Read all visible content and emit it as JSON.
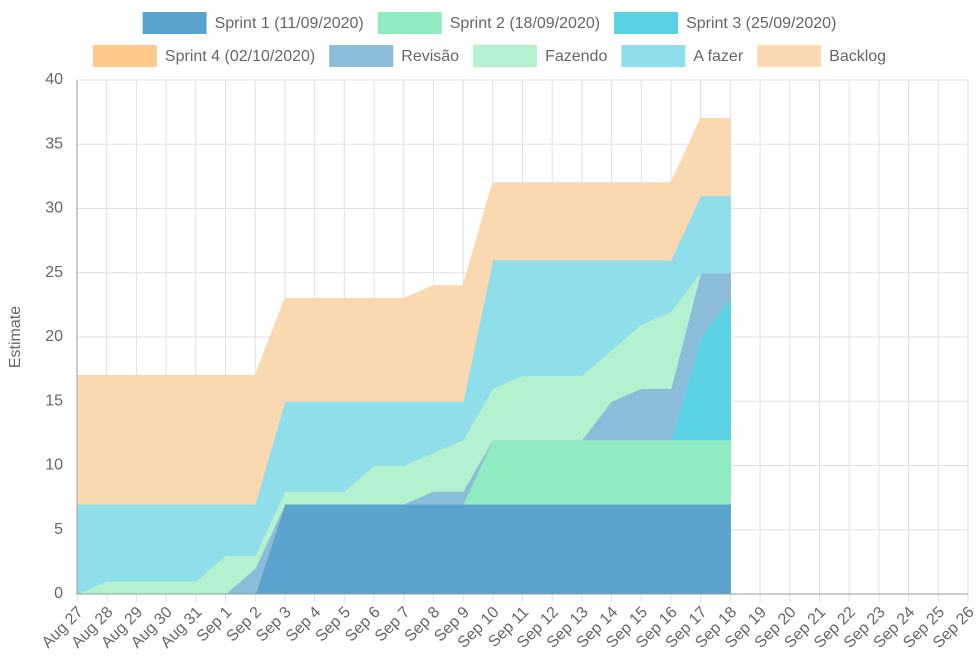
{
  "chart_data": {
    "type": "stacked_area",
    "categories": [
      "Aug 27",
      "Aug 28",
      "Aug 29",
      "Aug 30",
      "Aug 31",
      "Sep 1",
      "Sep 2",
      "Sep 3",
      "Sep 4",
      "Sep 5",
      "Sep 6",
      "Sep 7",
      "Sep 8",
      "Sep 9",
      "Sep 10",
      "Sep 11",
      "Sep 12",
      "Sep 13",
      "Sep 14",
      "Sep 15",
      "Sep 16",
      "Sep 17",
      "Sep 18",
      "Sep 19",
      "Sep 20",
      "Sep 21",
      "Sep 22",
      "Sep 23",
      "Sep 24",
      "Sep 25",
      "Sep 26"
    ],
    "y_label": "Estimate",
    "ylim": [
      0,
      40
    ],
    "yticks": [
      0,
      5,
      10,
      15,
      20,
      25,
      30,
      35,
      40
    ],
    "grid": true,
    "legend": "top",
    "series": [
      {
        "name": "Sprint 1 (11/09/2020)",
        "color": "#5ba3cf",
        "values": [
          0,
          0,
          0,
          0,
          0,
          0,
          0,
          7,
          7,
          7,
          7,
          7,
          7,
          7,
          7,
          7,
          7,
          7,
          7,
          7,
          7,
          7,
          7,
          null,
          null,
          null,
          null,
          null,
          null,
          null,
          null
        ]
      },
      {
        "name": "Sprint 2 (18/09/2020)",
        "color": "#8eecc0",
        "values": [
          0,
          0,
          0,
          0,
          0,
          0,
          0,
          0,
          0,
          0,
          0,
          0,
          0,
          0,
          5,
          5,
          5,
          5,
          5,
          5,
          5,
          5,
          5,
          null,
          null,
          null,
          null,
          null,
          null,
          null,
          null
        ]
      },
      {
        "name": "Sprint 3 (25/09/2020)",
        "color": "#5bd2e3",
        "values": [
          0,
          0,
          0,
          0,
          0,
          0,
          0,
          0,
          0,
          0,
          0,
          0,
          0,
          0,
          0,
          0,
          0,
          0,
          0,
          0,
          0,
          8,
          11,
          null,
          null,
          null,
          null,
          null,
          null,
          null,
          null
        ]
      },
      {
        "name": "Sprint 4 (02/10/2020)",
        "color": "#fec98a",
        "values": [
          0,
          0,
          0,
          0,
          0,
          0,
          0,
          0,
          0,
          0,
          0,
          0,
          0,
          0,
          0,
          0,
          0,
          0,
          0,
          0,
          0,
          0,
          0,
          null,
          null,
          null,
          null,
          null,
          null,
          null,
          null
        ]
      },
      {
        "name": "Revisão",
        "color": "#8bbcd9",
        "values": [
          0,
          0,
          0,
          0,
          0,
          0,
          2,
          0,
          0,
          0,
          0,
          0,
          1,
          1,
          0,
          0,
          0,
          0,
          3,
          4,
          4,
          5,
          2,
          null,
          null,
          null,
          null,
          null,
          null,
          null,
          null
        ]
      },
      {
        "name": "Fazendo",
        "color": "#b3f1cf",
        "values": [
          0,
          1,
          1,
          1,
          1,
          3,
          1,
          1,
          1,
          1,
          3,
          3,
          3,
          4,
          4,
          5,
          5,
          5,
          4,
          5,
          6,
          0,
          0,
          null,
          null,
          null,
          null,
          null,
          null,
          null,
          null
        ]
      },
      {
        "name": "A fazer",
        "color": "#8fdfea",
        "values": [
          7,
          6,
          6,
          6,
          6,
          4,
          4,
          7,
          7,
          7,
          5,
          5,
          4,
          3,
          10,
          9,
          9,
          9,
          7,
          5,
          4,
          6,
          6,
          null,
          null,
          null,
          null,
          null,
          null,
          null,
          null
        ]
      },
      {
        "name": "Backlog",
        "color": "#fad9b0",
        "values": [
          10,
          10,
          10,
          10,
          10,
          10,
          10,
          8,
          8,
          8,
          8,
          8,
          9,
          9,
          6,
          6,
          6,
          6,
          6,
          6,
          6,
          6,
          6,
          null,
          null,
          null,
          null,
          null,
          null,
          null,
          null
        ]
      }
    ]
  }
}
